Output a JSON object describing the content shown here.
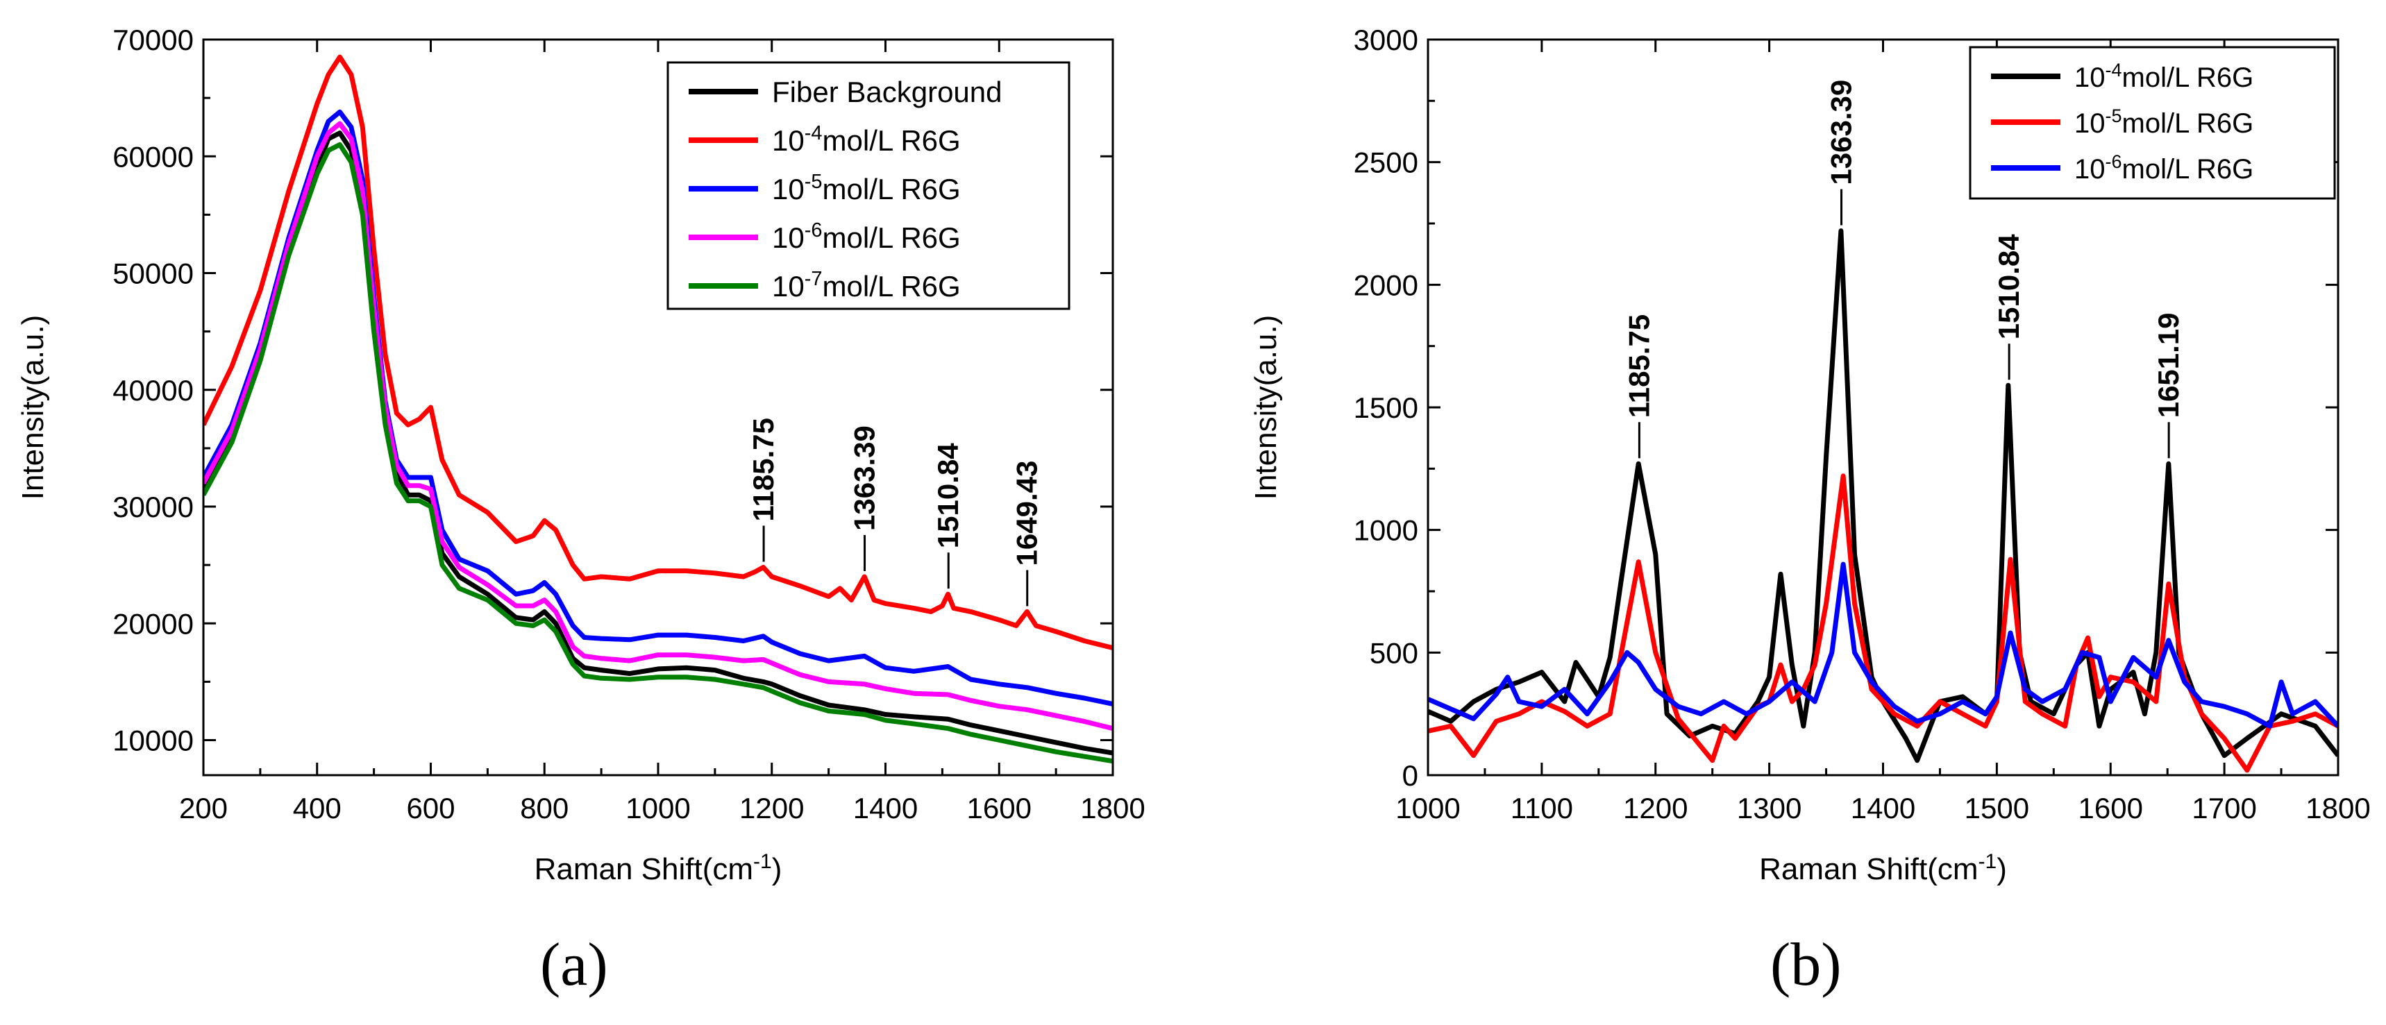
{
  "chart_data": [
    {
      "type": "line",
      "panel": "(a)",
      "xlabel": "Raman Shift(cm",
      "xlabel_sup": "-1",
      "xlabel_end": ")",
      "ylabel": "Intensity(a.u.)",
      "xlim": [
        200,
        1800
      ],
      "ylim": [
        7000,
        70000
      ],
      "xticks": [
        200,
        400,
        600,
        800,
        1000,
        1200,
        1400,
        1600,
        1800
      ],
      "yticks": [
        10000,
        20000,
        30000,
        40000,
        50000,
        60000,
        70000
      ],
      "legend_position": "top-right",
      "series": [
        {
          "name": "Fiber Background",
          "pre": "Fiber Background",
          "sup": "",
          "post": "",
          "color": "#000000",
          "x": [
            200,
            250,
            300,
            350,
            400,
            420,
            440,
            460,
            480,
            500,
            520,
            540,
            560,
            580,
            600,
            620,
            650,
            700,
            750,
            780,
            800,
            820,
            850,
            870,
            900,
            950,
            1000,
            1050,
            1100,
            1150,
            1185,
            1200,
            1250,
            1300,
            1363,
            1400,
            1450,
            1510,
            1550,
            1600,
            1650,
            1700,
            1750,
            1800
          ],
          "y": [
            31500,
            36000,
            43000,
            52000,
            59000,
            61500,
            62000,
            60500,
            56000,
            46000,
            38000,
            33000,
            31000,
            31000,
            30500,
            26000,
            24000,
            22500,
            20500,
            20300,
            21000,
            20000,
            17000,
            16200,
            16000,
            15700,
            16100,
            16200,
            16000,
            15300,
            15000,
            14800,
            13800,
            13000,
            12600,
            12200,
            12000,
            11800,
            11300,
            10800,
            10300,
            9800,
            9300,
            8900
          ]
        },
        {
          "name": "10-4mol/L R6G",
          "pre": "10",
          "sup": "-4",
          "post": "mol/L R6G",
          "color": "#ff0000",
          "x": [
            200,
            250,
            300,
            350,
            400,
            420,
            440,
            460,
            480,
            500,
            520,
            540,
            560,
            580,
            600,
            620,
            650,
            700,
            750,
            780,
            800,
            820,
            850,
            870,
            900,
            950,
            1000,
            1050,
            1100,
            1150,
            1170,
            1185,
            1200,
            1250,
            1300,
            1320,
            1340,
            1363,
            1380,
            1400,
            1450,
            1480,
            1500,
            1510,
            1520,
            1550,
            1600,
            1630,
            1649,
            1665,
            1700,
            1750,
            1800
          ],
          "y": [
            37000,
            42000,
            48500,
            57000,
            64500,
            67000,
            68500,
            67000,
            62500,
            52000,
            43000,
            38000,
            37000,
            37500,
            38500,
            34000,
            31000,
            29500,
            27000,
            27500,
            28800,
            28000,
            25000,
            23800,
            24000,
            23800,
            24500,
            24500,
            24300,
            24000,
            24400,
            24800,
            24000,
            23200,
            22300,
            23000,
            22000,
            24000,
            22000,
            21700,
            21300,
            21000,
            21500,
            22500,
            21300,
            21000,
            20300,
            19800,
            21000,
            19800,
            19300,
            18500,
            17900
          ]
        },
        {
          "name": "10-5mol/L R6G",
          "pre": "10",
          "sup": "-5",
          "post": "mol/L R6G",
          "color": "#0000ff",
          "x": [
            200,
            250,
            300,
            350,
            400,
            420,
            440,
            460,
            480,
            500,
            520,
            540,
            560,
            580,
            600,
            620,
            650,
            700,
            750,
            780,
            800,
            820,
            850,
            870,
            900,
            950,
            1000,
            1050,
            1100,
            1150,
            1185,
            1200,
            1250,
            1300,
            1363,
            1400,
            1450,
            1510,
            1550,
            1600,
            1650,
            1700,
            1750,
            1800
          ],
          "y": [
            32500,
            37000,
            44000,
            53000,
            60500,
            63000,
            63800,
            62500,
            58000,
            48000,
            39000,
            34000,
            32500,
            32500,
            32500,
            28000,
            25500,
            24500,
            22500,
            22800,
            23500,
            22500,
            19800,
            18800,
            18700,
            18600,
            19000,
            19000,
            18800,
            18500,
            18900,
            18400,
            17400,
            16800,
            17200,
            16200,
            15900,
            16300,
            15200,
            14800,
            14500,
            14000,
            13600,
            13100
          ]
        },
        {
          "name": "10-6mol/L R6G",
          "pre": "10",
          "sup": "-6",
          "post": "mol/L R6G",
          "color": "#ff00ff",
          "x": [
            200,
            250,
            300,
            350,
            400,
            420,
            440,
            460,
            480,
            500,
            520,
            540,
            560,
            580,
            600,
            620,
            650,
            700,
            750,
            780,
            800,
            820,
            850,
            870,
            900,
            950,
            1000,
            1050,
            1100,
            1150,
            1185,
            1200,
            1250,
            1300,
            1363,
            1400,
            1450,
            1510,
            1550,
            1600,
            1650,
            1700,
            1750,
            1800
          ],
          "y": [
            32000,
            36500,
            43500,
            52500,
            60000,
            62000,
            62800,
            61500,
            57000,
            47000,
            38500,
            33500,
            31800,
            31800,
            31500,
            27000,
            24800,
            23300,
            21500,
            21500,
            22000,
            21000,
            18000,
            17200,
            17000,
            16800,
            17300,
            17300,
            17100,
            16800,
            16900,
            16600,
            15600,
            15000,
            14800,
            14400,
            14000,
            13900,
            13400,
            12900,
            12600,
            12100,
            11600,
            11000
          ]
        },
        {
          "name": "10-7mol/L R6G",
          "pre": "10",
          "sup": "-7",
          "post": "mol/L R6G",
          "color": "#008000",
          "x": [
            200,
            250,
            300,
            350,
            400,
            420,
            440,
            460,
            480,
            500,
            520,
            540,
            560,
            580,
            600,
            620,
            650,
            700,
            750,
            780,
            800,
            820,
            850,
            870,
            900,
            950,
            1000,
            1050,
            1100,
            1150,
            1185,
            1200,
            1250,
            1300,
            1363,
            1400,
            1450,
            1510,
            1550,
            1600,
            1650,
            1700,
            1750,
            1800
          ],
          "y": [
            31000,
            35500,
            42500,
            51500,
            58500,
            60500,
            61000,
            59500,
            55000,
            45000,
            37000,
            32000,
            30500,
            30500,
            30000,
            25000,
            23000,
            22000,
            20000,
            19800,
            20300,
            19300,
            16500,
            15500,
            15300,
            15200,
            15400,
            15400,
            15200,
            14800,
            14500,
            14200,
            13200,
            12500,
            12200,
            11700,
            11400,
            11000,
            10500,
            10000,
            9500,
            9000,
            8600,
            8200
          ]
        }
      ],
      "annotations": [
        {
          "text": "1185.75",
          "x": 1185.75,
          "y": 24800
        },
        {
          "text": "1363.39",
          "x": 1363.39,
          "y": 24000
        },
        {
          "text": "1510.84",
          "x": 1510.84,
          "y": 22500
        },
        {
          "text": "1649.43",
          "x": 1649.43,
          "y": 21000
        }
      ]
    },
    {
      "type": "line",
      "panel": "(b)",
      "xlabel": "Raman Shift(cm",
      "xlabel_sup": "-1",
      "xlabel_end": ")",
      "ylabel": "Intensity(a.u.)",
      "xlim": [
        1000,
        1800
      ],
      "ylim": [
        0,
        3000
      ],
      "xticks": [
        1000,
        1100,
        1200,
        1300,
        1400,
        1500,
        1600,
        1700,
        1800
      ],
      "yticks": [
        0,
        500,
        1000,
        1500,
        2000,
        2500,
        3000
      ],
      "legend_position": "top-right",
      "series": [
        {
          "name": "10-4mol/L R6G",
          "pre": "10",
          "sup": "-4",
          "post": "mol/L R6G",
          "color": "#000000",
          "x": [
            1000,
            1020,
            1040,
            1060,
            1080,
            1100,
            1120,
            1130,
            1150,
            1160,
            1170,
            1185,
            1200,
            1210,
            1230,
            1250,
            1270,
            1290,
            1300,
            1310,
            1320,
            1330,
            1340,
            1350,
            1363,
            1375,
            1390,
            1400,
            1420,
            1430,
            1450,
            1470,
            1490,
            1500,
            1510,
            1520,
            1530,
            1550,
            1570,
            1580,
            1590,
            1600,
            1620,
            1630,
            1640,
            1651,
            1660,
            1680,
            1700,
            1720,
            1750,
            1780,
            1800
          ],
          "y": [
            260,
            220,
            300,
            350,
            380,
            420,
            300,
            460,
            320,
            480,
            800,
            1270,
            900,
            250,
            160,
            200,
            170,
            300,
            400,
            820,
            450,
            200,
            500,
            1300,
            2220,
            900,
            400,
            300,
            150,
            60,
            300,
            320,
            250,
            300,
            1590,
            500,
            300,
            250,
            450,
            500,
            200,
            350,
            420,
            250,
            500,
            1270,
            500,
            250,
            80,
            150,
            250,
            200,
            80
          ]
        },
        {
          "name": "10-5mol/L R6G",
          "pre": "10",
          "sup": "-5",
          "post": "mol/L R6G",
          "color": "#ff0000",
          "x": [
            1000,
            1020,
            1040,
            1060,
            1080,
            1100,
            1120,
            1140,
            1160,
            1170,
            1185,
            1200,
            1220,
            1250,
            1260,
            1270,
            1290,
            1300,
            1310,
            1320,
            1330,
            1340,
            1350,
            1365,
            1375,
            1390,
            1410,
            1430,
            1450,
            1470,
            1490,
            1500,
            1512,
            1525,
            1540,
            1560,
            1570,
            1580,
            1590,
            1600,
            1620,
            1640,
            1651,
            1665,
            1680,
            1700,
            1720,
            1740,
            1760,
            1780,
            1800
          ],
          "y": [
            180,
            200,
            80,
            220,
            250,
            300,
            260,
            200,
            250,
            500,
            870,
            500,
            230,
            60,
            200,
            150,
            280,
            300,
            450,
            300,
            350,
            450,
            700,
            1220,
            700,
            350,
            250,
            200,
            300,
            250,
            200,
            300,
            880,
            300,
            250,
            200,
            450,
            560,
            320,
            400,
            380,
            300,
            780,
            400,
            250,
            150,
            20,
            200,
            220,
            250,
            200
          ]
        },
        {
          "name": "10-6mol/L R6G",
          "pre": "10",
          "sup": "-6",
          "post": "mol/L R6G",
          "color": "#0000ff",
          "x": [
            1000,
            1020,
            1040,
            1060,
            1070,
            1080,
            1100,
            1120,
            1140,
            1160,
            1175,
            1185,
            1200,
            1220,
            1240,
            1260,
            1280,
            1300,
            1320,
            1340,
            1355,
            1365,
            1375,
            1390,
            1410,
            1430,
            1450,
            1470,
            1490,
            1500,
            1512,
            1525,
            1540,
            1560,
            1575,
            1590,
            1600,
            1620,
            1640,
            1651,
            1665,
            1680,
            1700,
            1720,
            1740,
            1750,
            1760,
            1780,
            1800
          ],
          "y": [
            310,
            270,
            230,
            330,
            400,
            300,
            280,
            350,
            250,
            380,
            500,
            460,
            350,
            280,
            250,
            300,
            250,
            300,
            380,
            300,
            500,
            860,
            500,
            380,
            280,
            220,
            250,
            300,
            250,
            320,
            580,
            350,
            300,
            350,
            500,
            480,
            300,
            480,
            400,
            550,
            380,
            300,
            280,
            250,
            200,
            380,
            250,
            300,
            200
          ]
        }
      ],
      "annotations": [
        {
          "text": "1185.75",
          "x": 1185.75,
          "y": 1270
        },
        {
          "text": "1363.39",
          "x": 1363.39,
          "y": 2220
        },
        {
          "text": "1510.84",
          "x": 1510.84,
          "y": 1590
        },
        {
          "text": "1651.19",
          "x": 1651.19,
          "y": 1270
        }
      ]
    }
  ],
  "panels": {
    "a_label": "(a)",
    "b_label": "(b)"
  }
}
